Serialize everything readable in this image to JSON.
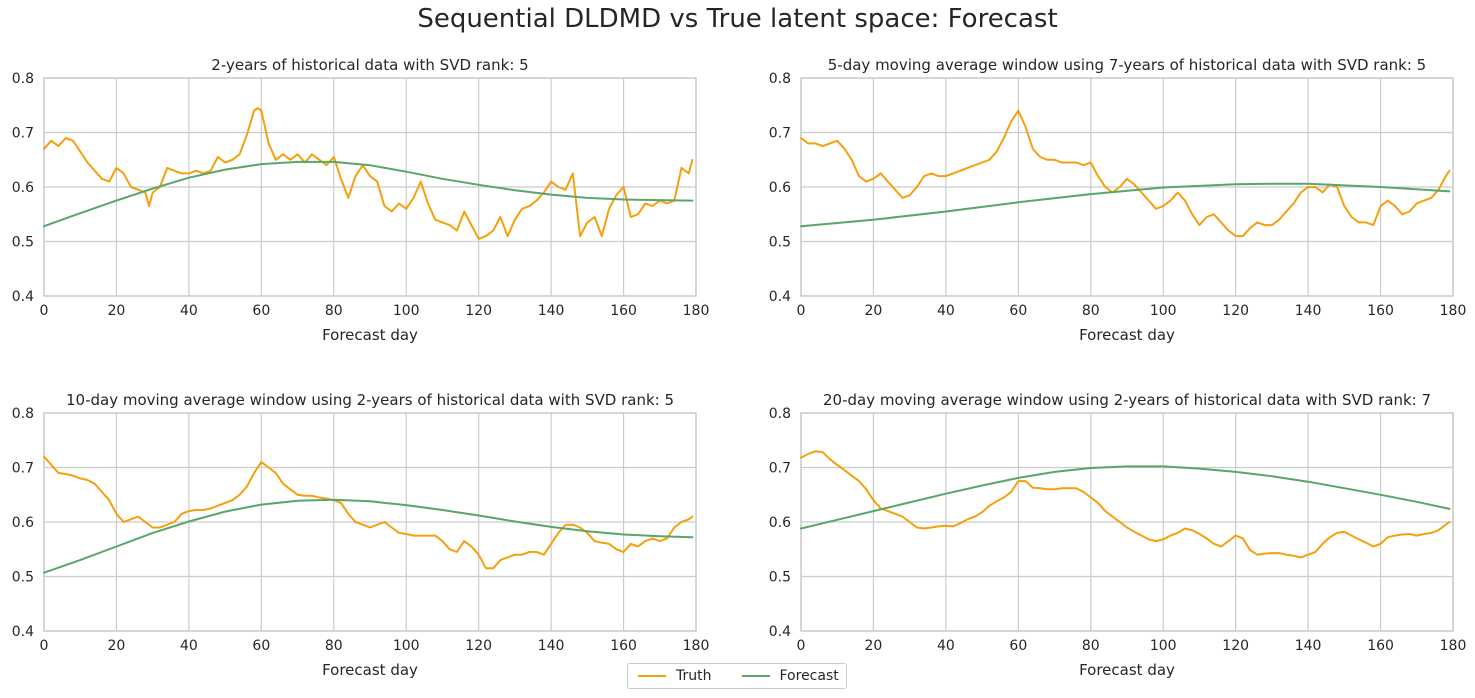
{
  "suptitle": "Sequential DLDMD vs True latent space: Forecast",
  "legend": {
    "truth_label": "Truth",
    "forecast_label": "Forecast"
  },
  "colors": {
    "truth": "#f5a00c",
    "forecast": "#58a66a",
    "grid": "#cccccc",
    "text": "#262626"
  },
  "chart_data": [
    {
      "type": "line",
      "title": "2-years of historical data with SVD rank: 5",
      "xlabel": "Forecast day",
      "ylabel": "",
      "xlim": [
        0,
        180
      ],
      "ylim": [
        0.4,
        0.8
      ],
      "xticks": [
        0,
        20,
        40,
        60,
        80,
        100,
        120,
        140,
        160,
        180
      ],
      "yticks": [
        0.4,
        0.5,
        0.6,
        0.7,
        0.8
      ],
      "grid": true,
      "series": [
        {
          "name": "Truth",
          "x": [
            0,
            2,
            4,
            6,
            8,
            10,
            12,
            14,
            16,
            18,
            20,
            22,
            24,
            26,
            28,
            29,
            30,
            32,
            34,
            36,
            38,
            40,
            42,
            44,
            46,
            48,
            50,
            52,
            54,
            56,
            58,
            59,
            60,
            62,
            64,
            66,
            68,
            70,
            72,
            74,
            76,
            78,
            80,
            82,
            84,
            86,
            88,
            90,
            92,
            94,
            96,
            98,
            100,
            102,
            104,
            106,
            108,
            110,
            112,
            114,
            116,
            118,
            120,
            122,
            124,
            126,
            128,
            130,
            132,
            134,
            136,
            138,
            140,
            142,
            144,
            146,
            148,
            150,
            152,
            154,
            156,
            158,
            160,
            162,
            164,
            166,
            168,
            170,
            172,
            174,
            176,
            178,
            179
          ],
          "values": [
            0.67,
            0.685,
            0.675,
            0.69,
            0.685,
            0.665,
            0.645,
            0.63,
            0.615,
            0.61,
            0.635,
            0.625,
            0.6,
            0.595,
            0.59,
            0.565,
            0.59,
            0.6,
            0.635,
            0.63,
            0.625,
            0.625,
            0.63,
            0.625,
            0.63,
            0.655,
            0.645,
            0.65,
            0.66,
            0.695,
            0.74,
            0.745,
            0.74,
            0.68,
            0.65,
            0.66,
            0.65,
            0.66,
            0.645,
            0.66,
            0.65,
            0.64,
            0.655,
            0.615,
            0.58,
            0.62,
            0.64,
            0.62,
            0.61,
            0.565,
            0.555,
            0.57,
            0.56,
            0.58,
            0.61,
            0.57,
            0.54,
            0.535,
            0.53,
            0.52,
            0.555,
            0.53,
            0.505,
            0.51,
            0.52,
            0.545,
            0.51,
            0.54,
            0.56,
            0.565,
            0.575,
            0.59,
            0.61,
            0.6,
            0.595,
            0.625,
            0.51,
            0.535,
            0.545,
            0.51,
            0.56,
            0.585,
            0.6,
            0.545,
            0.55,
            0.57,
            0.565,
            0.575,
            0.57,
            0.575,
            0.635,
            0.625,
            0.65
          ]
        },
        {
          "name": "Forecast",
          "x": [
            0,
            10,
            20,
            30,
            40,
            50,
            60,
            70,
            80,
            90,
            100,
            110,
            120,
            130,
            140,
            150,
            160,
            170,
            179
          ],
          "values": [
            0.528,
            0.552,
            0.575,
            0.597,
            0.617,
            0.632,
            0.642,
            0.646,
            0.646,
            0.64,
            0.628,
            0.615,
            0.604,
            0.594,
            0.586,
            0.58,
            0.577,
            0.576,
            0.575
          ]
        }
      ]
    },
    {
      "type": "line",
      "title": "5-day moving average window using 7-years of historical data with SVD rank: 5",
      "xlabel": "Forecast day",
      "ylabel": "",
      "xlim": [
        0,
        180
      ],
      "ylim": [
        0.4,
        0.8
      ],
      "xticks": [
        0,
        20,
        40,
        60,
        80,
        100,
        120,
        140,
        160,
        180
      ],
      "yticks": [
        0.4,
        0.5,
        0.6,
        0.7,
        0.8
      ],
      "grid": true,
      "series": [
        {
          "name": "Truth",
          "x": [
            0,
            2,
            4,
            6,
            8,
            10,
            12,
            14,
            16,
            18,
            20,
            22,
            24,
            26,
            28,
            30,
            32,
            34,
            36,
            38,
            40,
            42,
            44,
            46,
            48,
            50,
            52,
            54,
            56,
            58,
            60,
            62,
            64,
            66,
            68,
            70,
            72,
            74,
            76,
            78,
            80,
            82,
            84,
            86,
            88,
            90,
            92,
            94,
            96,
            98,
            100,
            102,
            104,
            106,
            108,
            110,
            112,
            114,
            116,
            118,
            120,
            122,
            124,
            126,
            128,
            130,
            132,
            134,
            136,
            138,
            140,
            142,
            144,
            146,
            148,
            150,
            152,
            154,
            156,
            158,
            160,
            162,
            164,
            166,
            168,
            170,
            172,
            174,
            176,
            178,
            179
          ],
          "values": [
            0.69,
            0.68,
            0.68,
            0.675,
            0.68,
            0.685,
            0.67,
            0.65,
            0.62,
            0.61,
            0.615,
            0.625,
            0.61,
            0.595,
            0.58,
            0.585,
            0.6,
            0.62,
            0.625,
            0.62,
            0.62,
            0.625,
            0.63,
            0.635,
            0.64,
            0.645,
            0.65,
            0.665,
            0.69,
            0.72,
            0.74,
            0.71,
            0.67,
            0.655,
            0.65,
            0.65,
            0.645,
            0.645,
            0.645,
            0.64,
            0.645,
            0.62,
            0.6,
            0.59,
            0.6,
            0.615,
            0.605,
            0.59,
            0.575,
            0.56,
            0.565,
            0.575,
            0.59,
            0.575,
            0.55,
            0.53,
            0.545,
            0.55,
            0.535,
            0.52,
            0.51,
            0.51,
            0.525,
            0.535,
            0.53,
            0.53,
            0.54,
            0.555,
            0.57,
            0.59,
            0.6,
            0.6,
            0.59,
            0.605,
            0.6,
            0.565,
            0.545,
            0.535,
            0.535,
            0.53,
            0.565,
            0.575,
            0.565,
            0.55,
            0.555,
            0.57,
            0.575,
            0.58,
            0.595,
            0.62,
            0.63
          ]
        },
        {
          "name": "Forecast",
          "x": [
            0,
            20,
            40,
            60,
            80,
            100,
            120,
            130,
            140,
            160,
            179
          ],
          "values": [
            0.528,
            0.54,
            0.555,
            0.572,
            0.587,
            0.599,
            0.605,
            0.606,
            0.606,
            0.6,
            0.592
          ]
        }
      ]
    },
    {
      "type": "line",
      "title": "10-day moving average window using 2-years of historical data with SVD rank: 5",
      "xlabel": "Forecast day",
      "ylabel": "",
      "xlim": [
        0,
        180
      ],
      "ylim": [
        0.4,
        0.8
      ],
      "xticks": [
        0,
        20,
        40,
        60,
        80,
        100,
        120,
        140,
        160,
        180
      ],
      "yticks": [
        0.4,
        0.5,
        0.6,
        0.7,
        0.8
      ],
      "grid": true,
      "series": [
        {
          "name": "Truth",
          "x": [
            0,
            2,
            4,
            6,
            8,
            10,
            12,
            14,
            16,
            18,
            20,
            22,
            24,
            26,
            28,
            30,
            32,
            34,
            36,
            38,
            40,
            42,
            44,
            46,
            48,
            50,
            52,
            54,
            56,
            58,
            60,
            62,
            64,
            66,
            68,
            70,
            72,
            74,
            76,
            78,
            80,
            82,
            84,
            86,
            88,
            90,
            92,
            94,
            96,
            98,
            100,
            102,
            104,
            106,
            108,
            110,
            112,
            114,
            116,
            118,
            120,
            122,
            124,
            126,
            128,
            130,
            132,
            134,
            136,
            138,
            140,
            142,
            144,
            146,
            148,
            150,
            152,
            154,
            156,
            158,
            160,
            162,
            164,
            166,
            168,
            170,
            172,
            174,
            176,
            178,
            179
          ],
          "values": [
            0.72,
            0.705,
            0.69,
            0.688,
            0.685,
            0.68,
            0.677,
            0.67,
            0.655,
            0.64,
            0.615,
            0.6,
            0.605,
            0.61,
            0.6,
            0.59,
            0.59,
            0.595,
            0.6,
            0.615,
            0.62,
            0.622,
            0.622,
            0.625,
            0.63,
            0.635,
            0.64,
            0.65,
            0.665,
            0.69,
            0.71,
            0.7,
            0.69,
            0.67,
            0.66,
            0.65,
            0.648,
            0.648,
            0.645,
            0.643,
            0.64,
            0.635,
            0.615,
            0.6,
            0.595,
            0.59,
            0.595,
            0.6,
            0.59,
            0.58,
            0.578,
            0.575,
            0.575,
            0.575,
            0.575,
            0.565,
            0.55,
            0.545,
            0.565,
            0.555,
            0.54,
            0.515,
            0.515,
            0.53,
            0.535,
            0.54,
            0.54,
            0.545,
            0.545,
            0.54,
            0.56,
            0.58,
            0.595,
            0.595,
            0.59,
            0.58,
            0.565,
            0.562,
            0.56,
            0.55,
            0.545,
            0.56,
            0.555,
            0.565,
            0.57,
            0.565,
            0.57,
            0.59,
            0.6,
            0.605,
            0.61
          ]
        },
        {
          "name": "Forecast",
          "x": [
            0,
            10,
            20,
            30,
            40,
            50,
            60,
            70,
            80,
            90,
            100,
            110,
            120,
            130,
            140,
            150,
            160,
            170,
            179
          ],
          "values": [
            0.507,
            0.53,
            0.555,
            0.58,
            0.601,
            0.619,
            0.632,
            0.639,
            0.641,
            0.638,
            0.631,
            0.622,
            0.612,
            0.601,
            0.591,
            0.583,
            0.577,
            0.574,
            0.572
          ]
        }
      ]
    },
    {
      "type": "line",
      "title": "20-day moving average window using 2-years of historical data with SVD rank: 7",
      "xlabel": "Forecast day",
      "ylabel": "",
      "xlim": [
        0,
        180
      ],
      "ylim": [
        0.4,
        0.8
      ],
      "xticks": [
        0,
        20,
        40,
        60,
        80,
        100,
        120,
        140,
        160,
        180
      ],
      "yticks": [
        0.4,
        0.5,
        0.6,
        0.7,
        0.8
      ],
      "grid": true,
      "series": [
        {
          "name": "Truth",
          "x": [
            0,
            2,
            4,
            6,
            8,
            10,
            12,
            14,
            16,
            18,
            20,
            22,
            24,
            26,
            28,
            30,
            32,
            34,
            36,
            38,
            40,
            42,
            44,
            46,
            48,
            50,
            52,
            54,
            56,
            58,
            60,
            62,
            64,
            66,
            68,
            70,
            72,
            74,
            76,
            78,
            80,
            82,
            84,
            86,
            88,
            90,
            92,
            94,
            96,
            98,
            100,
            102,
            104,
            106,
            108,
            110,
            112,
            114,
            116,
            118,
            120,
            122,
            124,
            126,
            128,
            130,
            132,
            134,
            136,
            138,
            140,
            142,
            144,
            146,
            148,
            150,
            152,
            154,
            156,
            158,
            160,
            162,
            164,
            166,
            168,
            170,
            172,
            174,
            176,
            178,
            179
          ],
          "values": [
            0.718,
            0.725,
            0.73,
            0.728,
            0.715,
            0.705,
            0.695,
            0.685,
            0.675,
            0.66,
            0.64,
            0.625,
            0.62,
            0.615,
            0.61,
            0.6,
            0.59,
            0.588,
            0.59,
            0.592,
            0.593,
            0.592,
            0.598,
            0.605,
            0.61,
            0.618,
            0.63,
            0.638,
            0.645,
            0.655,
            0.675,
            0.675,
            0.663,
            0.662,
            0.66,
            0.66,
            0.662,
            0.662,
            0.662,
            0.655,
            0.645,
            0.635,
            0.62,
            0.61,
            0.6,
            0.59,
            0.582,
            0.575,
            0.568,
            0.565,
            0.568,
            0.575,
            0.58,
            0.588,
            0.585,
            0.578,
            0.57,
            0.56,
            0.555,
            0.565,
            0.575,
            0.57,
            0.548,
            0.54,
            0.542,
            0.543,
            0.543,
            0.54,
            0.538,
            0.535,
            0.54,
            0.545,
            0.56,
            0.572,
            0.58,
            0.582,
            0.575,
            0.568,
            0.562,
            0.555,
            0.56,
            0.572,
            0.575,
            0.577,
            0.578,
            0.575,
            0.578,
            0.58,
            0.585,
            0.595,
            0.6
          ]
        },
        {
          "name": "Forecast",
          "x": [
            0,
            10,
            20,
            30,
            40,
            50,
            60,
            70,
            80,
            90,
            100,
            110,
            120,
            130,
            140,
            150,
            160,
            170,
            179
          ],
          "values": [
            0.588,
            0.604,
            0.62,
            0.636,
            0.652,
            0.667,
            0.681,
            0.692,
            0.699,
            0.702,
            0.702,
            0.698,
            0.692,
            0.684,
            0.674,
            0.662,
            0.65,
            0.637,
            0.624
          ]
        }
      ]
    }
  ]
}
